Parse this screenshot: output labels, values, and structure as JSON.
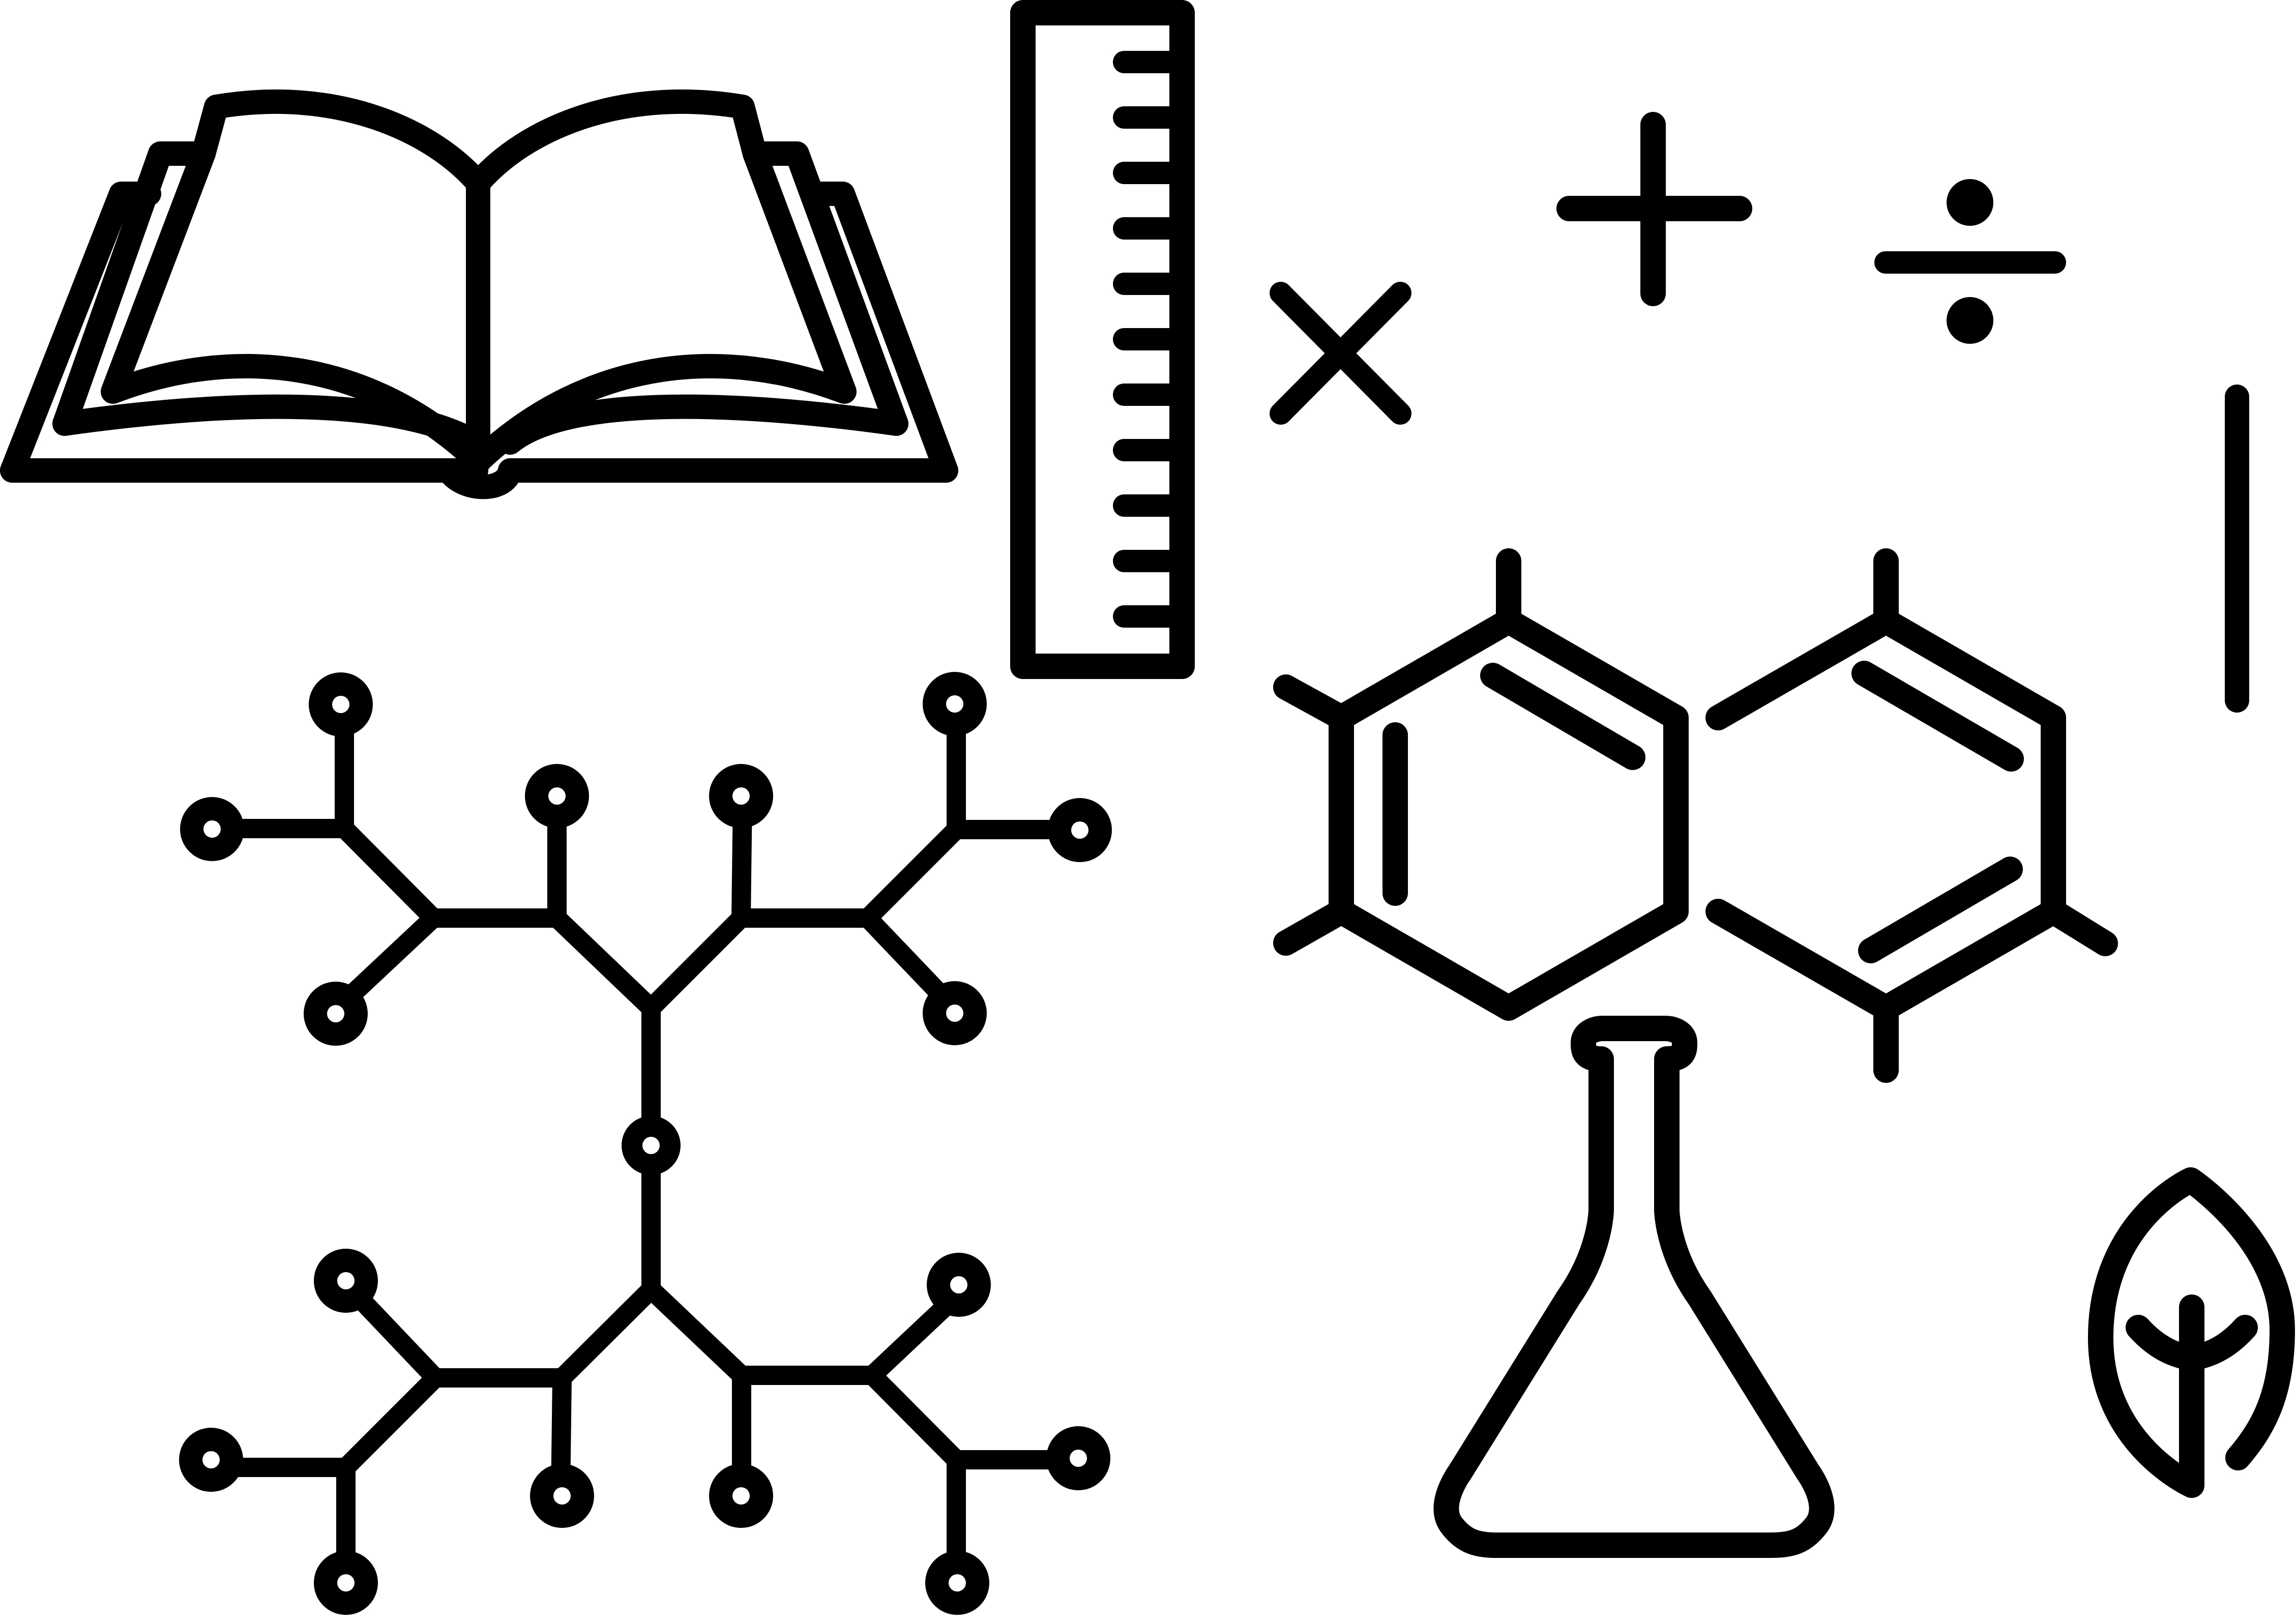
{
  "canvas": {
    "background": "#ffffff",
    "stroke_color": "#000000"
  },
  "icons": [
    "open-book-icon",
    "ruler-icon",
    "plus-icon",
    "division-icon",
    "multiplication-icon",
    "vertical-bar-icon",
    "hexagon-molecule-icon",
    "branching-molecule-icon",
    "erlenmeyer-flask-icon",
    "leaf-icon"
  ]
}
